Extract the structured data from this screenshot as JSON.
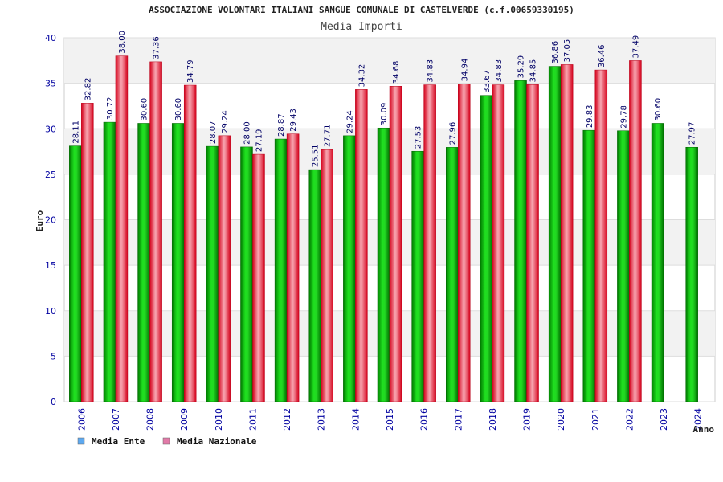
{
  "chart_data": {
    "type": "bar",
    "title": "ASSOCIAZIONE VOLONTARI ITALIANI SANGUE COMUNALE DI CASTELVERDE (c.f.00659330195)",
    "subtitle": "Media Importi",
    "xlabel": "Anno",
    "ylabel": "Euro",
    "ylim": [
      0,
      40
    ],
    "yticks": [
      0,
      5,
      10,
      15,
      20,
      25,
      30,
      35,
      40
    ],
    "grid": true,
    "legend_position": "bottom-left",
    "categories": [
      "2006",
      "2007",
      "2008",
      "2009",
      "2010",
      "2011",
      "2012",
      "2013",
      "2014",
      "2015",
      "2016",
      "2017",
      "2018",
      "2019",
      "2020",
      "2021",
      "2022",
      "2023",
      "2024"
    ],
    "series": [
      {
        "name": "Media Ente",
        "color": "#00c000",
        "legend_color": "#5da9f0",
        "values": [
          28.11,
          30.72,
          30.6,
          30.6,
          28.07,
          28.0,
          28.87,
          25.51,
          29.24,
          30.09,
          27.53,
          27.96,
          33.67,
          35.29,
          36.86,
          29.83,
          29.78,
          30.6,
          27.97
        ],
        "labels": [
          "28.11",
          "30.72",
          "30.60",
          "30.60",
          "28.07",
          "28.00",
          "28.87",
          "25.51",
          "29.24",
          "30.09",
          "27.53",
          "27.96",
          "33.67",
          "35.29",
          "36.86",
          "29.83",
          "29.78",
          "30.60",
          "27.97"
        ]
      },
      {
        "name": "Media Nazionale",
        "color": "#e8102a",
        "legend_color": "#e27aa8",
        "values": [
          32.82,
          38.0,
          37.36,
          34.79,
          29.24,
          27.19,
          29.43,
          27.71,
          34.32,
          34.68,
          34.83,
          34.94,
          34.83,
          34.85,
          37.05,
          36.46,
          37.49,
          null,
          null
        ],
        "labels": [
          "32.82",
          "38.00",
          "37.36",
          "34.79",
          "29.24",
          "27.19",
          "29.43",
          "27.71",
          "34.32",
          "34.68",
          "34.83",
          "34.94",
          "34.83",
          "34.85",
          "37.05",
          "36.46",
          "37.49",
          "",
          ""
        ]
      }
    ]
  }
}
